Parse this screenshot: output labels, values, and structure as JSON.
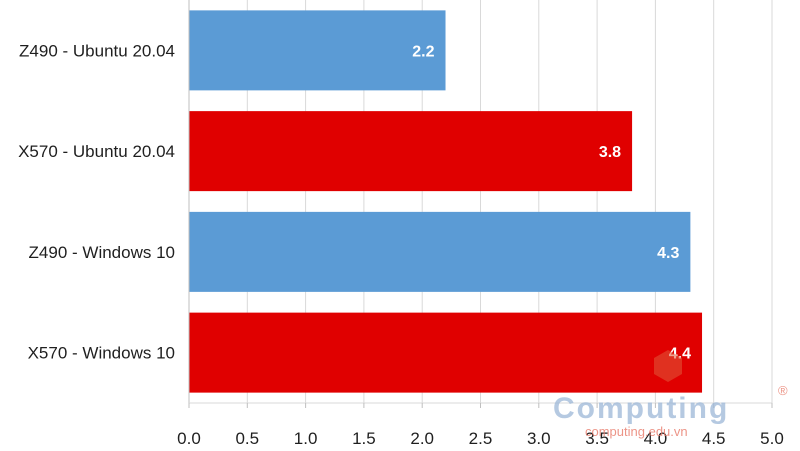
{
  "chart_data": {
    "type": "bar",
    "orientation": "horizontal",
    "categories": [
      "Z490 - Ubuntu 20.04",
      "X570 - Ubuntu 20.04",
      "Z490 - Windows 10",
      "X570 - Windows 10"
    ],
    "values": [
      2.2,
      3.8,
      4.3,
      4.4
    ],
    "colors": [
      "#5b9bd5",
      "#e00000",
      "#5b9bd5",
      "#e00000"
    ],
    "xlim": [
      0,
      5.0
    ],
    "xticks": [
      "0.0",
      "0.5",
      "1.0",
      "1.5",
      "2.0",
      "2.5",
      "3.0",
      "3.5",
      "4.0",
      "4.5",
      "5.0"
    ],
    "data_labels": [
      "2.2",
      "3.8",
      "4.3",
      "4.4"
    ],
    "grid": true,
    "title": "",
    "xlabel": "",
    "ylabel": ""
  },
  "watermark": {
    "text": "Computing",
    "subtext": "computing.edu.vn",
    "mark": "®"
  }
}
